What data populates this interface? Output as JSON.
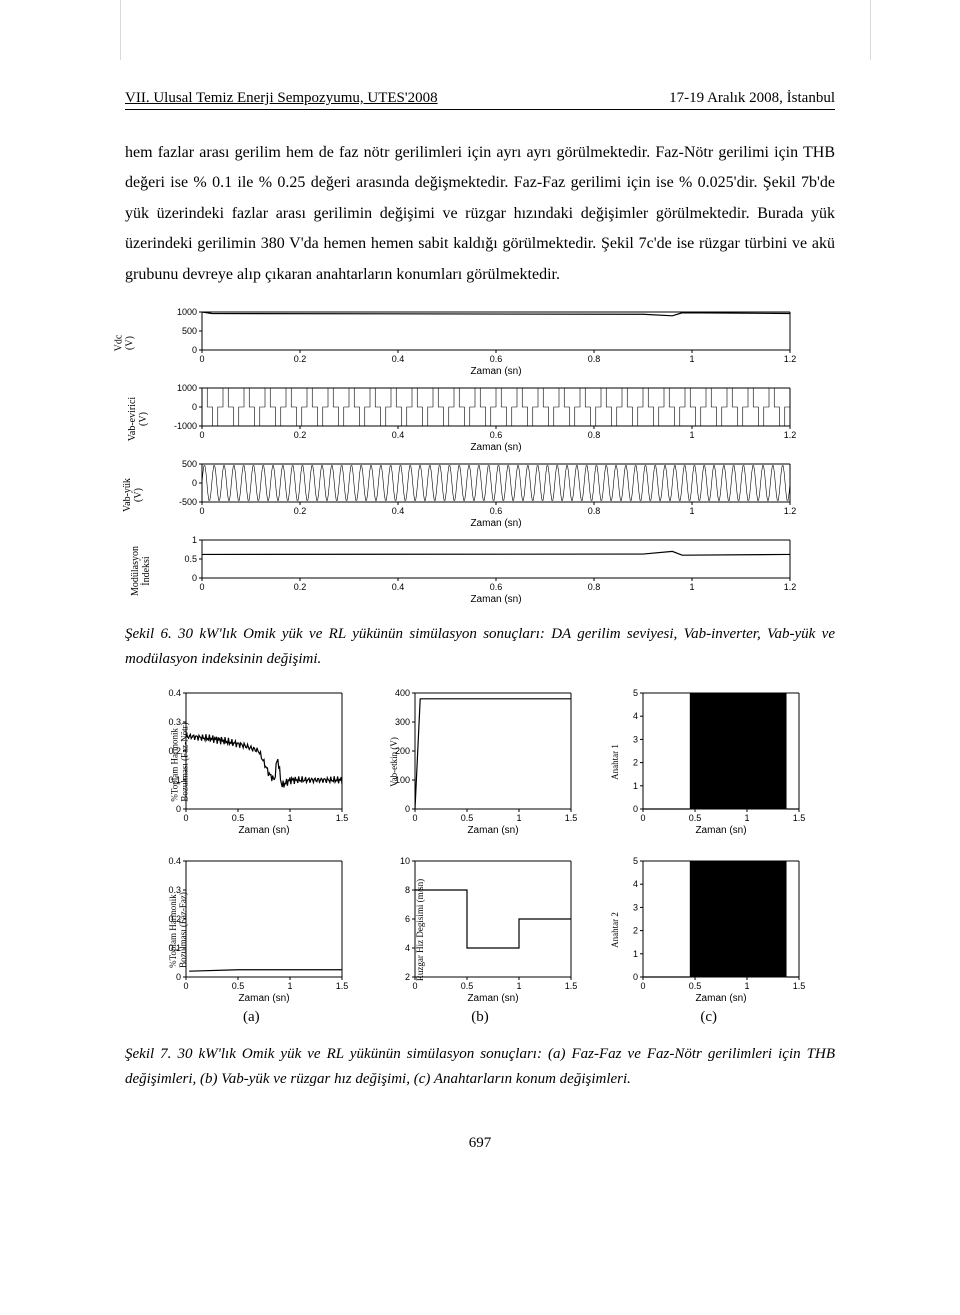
{
  "header": {
    "left": "VII. Ulusal Temiz Enerji Sempozyumu, UTES'2008",
    "right": "17-19 Aralık 2008, İstanbul"
  },
  "paragraph": "hem fazlar arası gerilim hem de faz nötr gerilimleri için ayrı ayrı görülmektedir. Faz-Nötr gerilimi için THB değeri ise % 0.1 ile % 0.25 değeri arasında değişmektedir. Faz-Faz gerilimi için ise % 0.025'dir. Şekil 7b'de yük üzerindeki fazlar arası gerilimin değişimi ve rüzgar hızındaki değişimler görülmektedir. Burada yük üzerindeki gerilimin 380 V'da hemen hemen sabit kaldığı görülmektedir. Şekil 7c'de ise rüzgar türbini ve akü grubunu devreye alıp çıkaran anahtarların konumları görülmektedir.",
  "fig6": {
    "xlim": [
      0,
      1.2
    ],
    "xticks": [
      0,
      0.2,
      0.4,
      0.6,
      0.8,
      1,
      1.2
    ],
    "xlabel": "Zaman (sn)",
    "axis_color": "#000000",
    "line_color": "#000000",
    "bg": "#ffffff",
    "panels": [
      {
        "ylabel": "Vdc\n(V)",
        "ylim": [
          0,
          1000
        ],
        "yticks": [
          0,
          500,
          1000
        ],
        "type": "line",
        "data": [
          [
            0,
            1000
          ],
          [
            0.02,
            960
          ],
          [
            0.9,
            940
          ],
          [
            0.96,
            900
          ],
          [
            0.98,
            980
          ],
          [
            1.2,
            960
          ]
        ]
      },
      {
        "ylabel": "Vab-evirici\n(V)",
        "ylim": [
          -1000,
          1000
        ],
        "yticks": [
          -1000,
          0,
          1000
        ],
        "type": "pwm",
        "amplitude": 1000,
        "cycles": 56
      },
      {
        "ylabel": "Vab-yük\n(V)",
        "ylim": [
          -500,
          500
        ],
        "yticks": [
          -500,
          0,
          500
        ],
        "type": "sine",
        "amplitude": 480,
        "cycles": 60
      },
      {
        "ylabel": "Modülasyon\nİndeksi",
        "ylim": [
          0,
          1
        ],
        "yticks": [
          0,
          0.5,
          1
        ],
        "type": "line",
        "data": [
          [
            0,
            0.62
          ],
          [
            0.9,
            0.63
          ],
          [
            0.96,
            0.7
          ],
          [
            0.98,
            0.6
          ],
          [
            1.2,
            0.62
          ]
        ]
      }
    ],
    "caption": "Şekil 6. 30 kW'lık Omik yük ve RL yükünün simülasyon sonuçları: DA gerilim seviyesi, Vab-inverter, Vab-yük ve modülasyon indeksinin değişimi."
  },
  "fig7": {
    "xlim": [
      0,
      1.5
    ],
    "xticks": [
      0,
      0.5,
      1,
      1.5
    ],
    "xlabel": "Zaman (sn)",
    "axis_color": "#000000",
    "line_color": "#000000",
    "bg": "#ffffff",
    "row1": [
      {
        "ylabel": "%Toplam Harmonik\nBozulması (Faz-Nötr)",
        "ylim": [
          0,
          0.4
        ],
        "yticks": [
          0,
          0.1,
          0.2,
          0.3,
          0.4
        ],
        "type": "noisy",
        "data": [
          [
            0.05,
            0.25
          ],
          [
            0.3,
            0.24
          ],
          [
            0.55,
            0.22
          ],
          [
            0.7,
            0.2
          ],
          [
            0.8,
            0.12
          ],
          [
            0.85,
            0.1
          ],
          [
            0.88,
            0.18
          ],
          [
            0.92,
            0.08
          ],
          [
            1.0,
            0.1
          ],
          [
            1.5,
            0.1
          ]
        ],
        "noise": 0.015
      },
      {
        "ylabel": "Vab-etkin (V)",
        "ylim": [
          0,
          400
        ],
        "yticks": [
          0,
          100,
          200,
          300,
          400
        ],
        "type": "line",
        "data": [
          [
            0,
            0
          ],
          [
            0.05,
            380
          ],
          [
            1.5,
            380
          ]
        ]
      },
      {
        "ylabel": "Anahtar 1",
        "ylim": [
          0,
          5
        ],
        "yticks": [
          0,
          1,
          2,
          3,
          4,
          5
        ],
        "type": "dense-toggle",
        "low": 0,
        "high": 5,
        "start": 0.45,
        "end": 1.38,
        "cycles": 160
      }
    ],
    "row2": [
      {
        "ylabel": "%Toplam Harmonik\nBozulması (Faz-Faz)",
        "ylim": [
          0,
          0.4
        ],
        "yticks": [
          0,
          0.1,
          0.2,
          0.3,
          0.4
        ],
        "type": "line",
        "data": [
          [
            0.03,
            0.02
          ],
          [
            0.5,
            0.025
          ],
          [
            1.0,
            0.025
          ],
          [
            1.5,
            0.025
          ]
        ]
      },
      {
        "ylabel": "Ruzgar Hiz Degisimi (m/sn)",
        "ylim": [
          2,
          10
        ],
        "yticks": [
          2,
          4,
          6,
          8,
          10
        ],
        "type": "step",
        "data": [
          [
            0,
            8
          ],
          [
            0.5,
            8
          ],
          [
            0.5,
            4
          ],
          [
            1.0,
            4
          ],
          [
            1.0,
            6
          ],
          [
            1.5,
            6
          ]
        ]
      },
      {
        "ylabel": "Anahtar 2",
        "ylim": [
          0,
          5
        ],
        "yticks": [
          0,
          1,
          2,
          3,
          4,
          5
        ],
        "type": "dense-toggle",
        "low": 0,
        "high": 5,
        "start": 0.45,
        "end": 1.38,
        "cycles": 160
      }
    ],
    "col_letters": [
      "(a)",
      "(b)",
      "(c)"
    ],
    "caption": "Şekil 7. 30 kW'lık Omik yük ve RL yükünün simülasyon sonuçları: (a) Faz-Faz ve Faz-Nötr gerilimleri için THB değişimleri, (b) Vab-yük ve rüzgar hız değişimi, (c) Anahtarların konum değişimleri."
  },
  "page_number": "697"
}
